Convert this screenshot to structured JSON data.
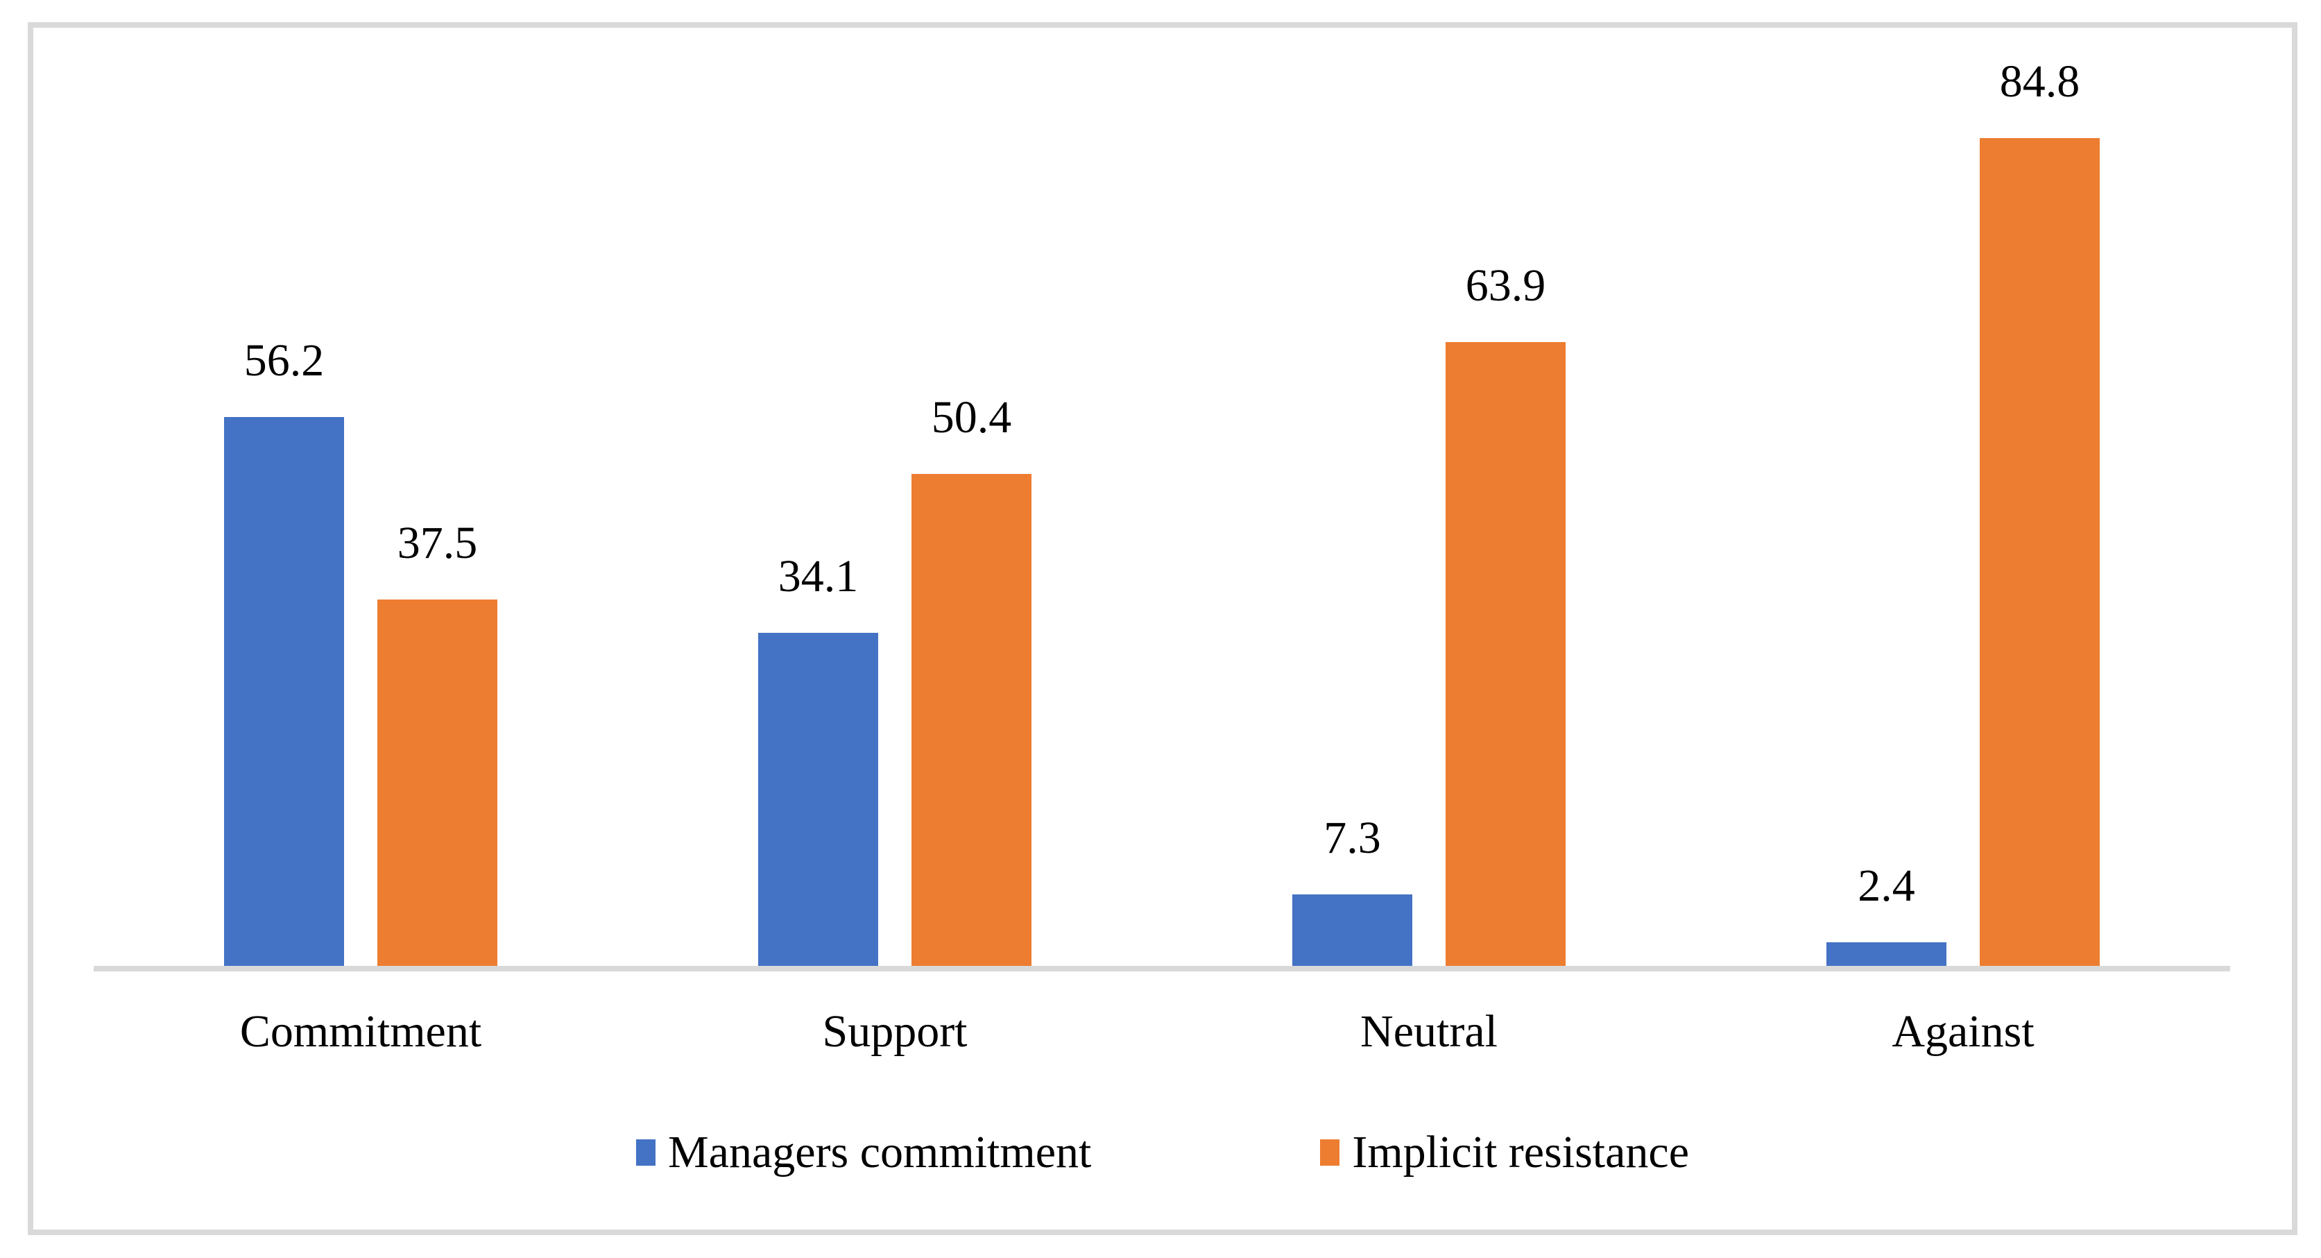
{
  "chart_data": {
    "type": "bar",
    "categories": [
      "Commitment",
      "Support",
      "Neutral",
      "Against"
    ],
    "series": [
      {
        "name": "Managers commitment",
        "color": "#4472C4",
        "values": [
          56.2,
          34.1,
          7.3,
          2.4
        ]
      },
      {
        "name": "Implicit resistance",
        "color": "#ED7D31",
        "values": [
          37.5,
          50.4,
          63.9,
          84.8
        ]
      }
    ],
    "title": "",
    "xlabel": "",
    "ylabel": "",
    "ylim": [
      0,
      96
    ],
    "grid": false,
    "y_axis_visible": false,
    "data_labels_visible": true,
    "legend_position": "bottom-center",
    "colors": {
      "series_blue": "#4472C4",
      "series_orange": "#ED7D31",
      "axis_line": "#D9D9D9",
      "frame_border": "#D9D9D9",
      "text": "#000000",
      "background": "#FFFFFF"
    }
  }
}
